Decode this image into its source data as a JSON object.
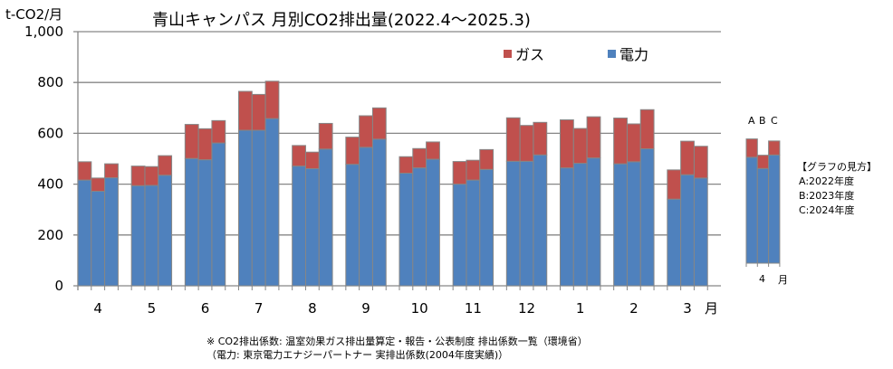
{
  "chart_data": {
    "type": "bar",
    "stacked": true,
    "title": "青山キャンパス 月別CO2排出量(2022.4～2025.3)",
    "ylabel": "t-CO2/月",
    "xlabel": "月",
    "ylim": [
      0,
      1000
    ],
    "yticks": [
      "0",
      "200",
      "400",
      "600",
      "800",
      "1,000"
    ],
    "ytick_values": [
      0,
      200,
      400,
      600,
      800,
      1000
    ],
    "grid": true,
    "legend_placement": "top-right",
    "categories": [
      "4",
      "5",
      "6",
      "7",
      "8",
      "9",
      "10",
      "11",
      "12",
      "1",
      "2",
      "3"
    ],
    "years": [
      "A",
      "B",
      "C"
    ],
    "colors": {
      "gas": "#c0504d",
      "electricity": "#4f81bd",
      "grid": "#868686"
    },
    "series": [
      {
        "name": "電力",
        "key": "electricity",
        "values": [
          [
            416,
            372,
            425
          ],
          [
            394,
            395,
            435
          ],
          [
            501,
            496,
            562
          ],
          [
            612,
            612,
            658
          ],
          [
            471,
            461,
            538
          ],
          [
            478,
            545,
            577
          ],
          [
            443,
            464,
            498
          ],
          [
            400,
            416,
            458
          ],
          [
            490,
            490,
            515
          ],
          [
            464,
            482,
            503
          ],
          [
            480,
            488,
            539
          ],
          [
            341,
            437,
            424
          ]
        ]
      },
      {
        "name": "ガス",
        "key": "gas",
        "values": [
          [
            72,
            52,
            55
          ],
          [
            77,
            74,
            77
          ],
          [
            134,
            122,
            88
          ],
          [
            153,
            141,
            147
          ],
          [
            81,
            65,
            101
          ],
          [
            107,
            124,
            123
          ],
          [
            65,
            76,
            68
          ],
          [
            89,
            78,
            78
          ],
          [
            171,
            141,
            128
          ],
          [
            189,
            137,
            162
          ],
          [
            180,
            149,
            154
          ],
          [
            115,
            132,
            125
          ]
        ]
      }
    ],
    "legend_example": {
      "labels": [
        "A",
        "B",
        "C"
      ],
      "month": "4",
      "month_unit": "月",
      "heading": "【グラフの見方】",
      "lines": [
        "A:2022年度",
        "B:2023年度",
        "C:2024年度"
      ]
    },
    "notes": [
      "※ CO2排出係数: 温室効果ガス排出量算定・報告・公表制度  排出係数一覧（環境省）",
      "（電力: 東京電力エナジーパートナー 実排出係数(2004年度実績)）"
    ]
  }
}
